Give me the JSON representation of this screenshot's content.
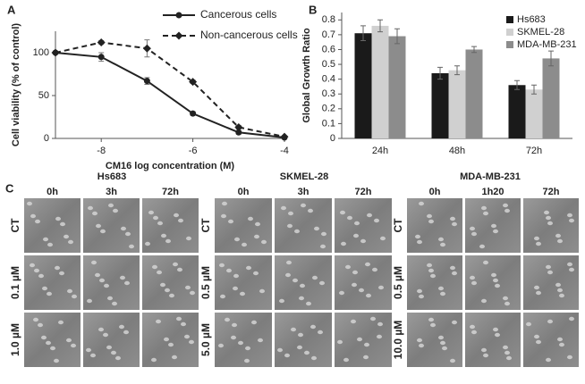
{
  "chart_data": [
    {
      "type": "line",
      "panel": "A",
      "x_label": "CM16 log concentration (M)",
      "y_label": "Cell viability (% of control)",
      "x": [
        -9,
        -8,
        -7,
        -6,
        -5,
        -4
      ],
      "xlim": [
        -9,
        -4
      ],
      "xticks": [
        -8,
        -6,
        -4
      ],
      "ylim": [
        0,
        125
      ],
      "yticks": [
        0,
        50,
        100
      ],
      "series": [
        {
          "name": "Cancerous cells",
          "color": "#222222",
          "dash": false,
          "marker": "circle",
          "values": [
            100,
            95,
            67,
            29,
            7,
            1
          ],
          "errors": [
            0,
            5,
            4,
            2,
            2,
            1
          ]
        },
        {
          "name": "Non-cancerous cells",
          "color": "#222222",
          "dash": true,
          "marker": "diamond",
          "values": [
            100,
            112,
            105,
            66,
            13,
            2
          ],
          "errors": [
            0,
            2,
            10,
            2,
            2,
            1
          ]
        }
      ]
    },
    {
      "type": "bar",
      "panel": "B",
      "y_label": "Global Growth Ratio",
      "categories": [
        "24h",
        "48h",
        "72h"
      ],
      "ylim": [
        0,
        0.85
      ],
      "yticks": [
        0,
        0.1,
        0.2,
        0.3,
        0.4,
        0.5,
        0.6,
        0.7,
        0.8
      ],
      "series": [
        {
          "name": "Hs683",
          "color": "#1a1a1a",
          "values": [
            0.71,
            0.44,
            0.36
          ],
          "errors": [
            0.05,
            0.04,
            0.03
          ]
        },
        {
          "name": "SKMEL-28",
          "color": "#d0d0d0",
          "values": [
            0.76,
            0.46,
            0.33
          ],
          "errors": [
            0.04,
            0.03,
            0.03
          ]
        },
        {
          "name": "MDA-MB-231",
          "color": "#8c8c8c",
          "values": [
            0.69,
            0.6,
            0.54
          ],
          "errors": [
            0.05,
            0.02,
            0.05
          ]
        }
      ]
    }
  ],
  "panel_c": {
    "label": "C",
    "groups": [
      {
        "name": "Hs683",
        "times": [
          "0h",
          "3h",
          "72h"
        ],
        "doses": [
          "CT",
          "0.1 µM",
          "1.0 µM"
        ]
      },
      {
        "name": "SKMEL-28",
        "times": [
          "0h",
          "3h",
          "72h"
        ],
        "doses": [
          "CT",
          "0.5 µM",
          "5.0 µM"
        ]
      },
      {
        "name": "MDA-MB-231",
        "times": [
          "0h",
          "1h20",
          "72h"
        ],
        "doses": [
          "CT",
          "0.5 µM",
          "10.0 µM"
        ]
      }
    ]
  }
}
